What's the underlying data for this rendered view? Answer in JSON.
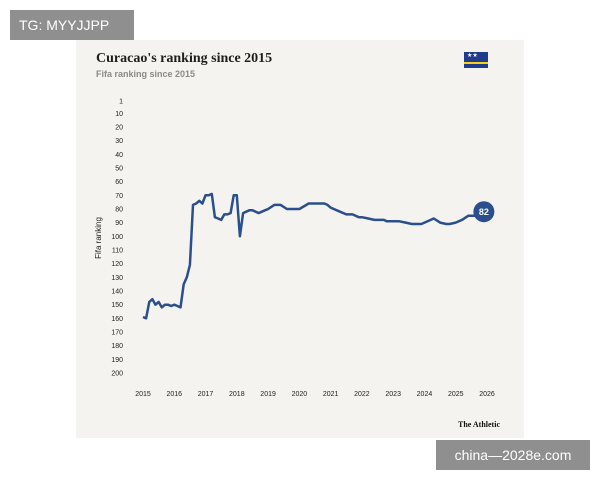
{
  "watermark_top": "TG: MYYJJPP",
  "watermark_bottom": "china—2028e.com",
  "source_label": "The Athletic",
  "flag_icon": "curacao-flag-icon",
  "colors": {
    "line": "#2a4f8c",
    "card_bg": "#f4f3ef",
    "flag_blue": "#1f3c8c",
    "flag_yellow": "#f7d116"
  },
  "chart_data": {
    "type": "line",
    "title": "Curacao's ranking since 2015",
    "subtitle": "Fifa ranking since 2015",
    "ylabel": "Fifa ranking",
    "xlabel": "",
    "y_inverted": true,
    "ylim": [
      1,
      200
    ],
    "xlim": [
      2015,
      2026
    ],
    "y_ticks": [
      "1",
      "10",
      "20",
      "30",
      "40",
      "50",
      "60",
      "70",
      "80",
      "90",
      "100",
      "110",
      "120",
      "130",
      "140",
      "150",
      "160",
      "170",
      "180",
      "190",
      "200"
    ],
    "x_ticks": [
      "2015",
      "2016",
      "2017",
      "2018",
      "2019",
      "2020",
      "2021",
      "2022",
      "2023",
      "2024",
      "2025",
      "2026"
    ],
    "grid": false,
    "end_label": "82",
    "series": [
      {
        "x": [
          2015.0,
          2015.1,
          2015.2,
          2015.3,
          2015.4,
          2015.5,
          2015.6,
          2015.7,
          2015.8,
          2015.9,
          2016.0,
          2016.1,
          2016.2,
          2016.3,
          2016.4,
          2016.5,
          2016.6,
          2016.7,
          2016.8,
          2016.9,
          2017.0,
          2017.1,
          2017.2,
          2017.3,
          2017.4,
          2017.5,
          2017.6,
          2017.7,
          2017.8,
          2017.9,
          2018.0,
          2018.1,
          2018.2,
          2018.3,
          2018.4,
          2018.5,
          2018.6,
          2018.7,
          2018.8,
          2018.9,
          2019.0,
          2019.2,
          2019.4,
          2019.6,
          2019.8,
          2019.9,
          2020.0,
          2020.3,
          2020.6,
          2020.8,
          2020.9,
          2021.0,
          2021.3,
          2021.5,
          2021.7,
          2021.9,
          2022.0,
          2022.2,
          2022.4,
          2022.5,
          2022.7,
          2022.8,
          2023.0,
          2023.2,
          2023.4,
          2023.6,
          2023.8,
          2023.9,
          2024.0,
          2024.2,
          2024.3,
          2024.5,
          2024.7,
          2024.8,
          2025.0,
          2025.2,
          2025.4,
          2025.6,
          2025.8,
          2025.9
        ],
        "y": [
          159,
          160,
          148,
          146,
          150,
          148,
          152,
          150,
          150,
          151,
          150,
          151,
          152,
          135,
          130,
          121,
          77,
          76,
          74,
          76,
          70,
          70,
          69,
          86,
          87,
          88,
          84,
          84,
          83,
          70,
          70,
          100,
          83,
          82,
          81,
          81,
          82,
          83,
          82,
          81,
          80,
          77,
          77,
          80,
          80,
          80,
          80,
          76,
          76,
          76,
          77,
          79,
          82,
          84,
          84,
          86,
          86,
          87,
          88,
          88,
          88,
          89,
          89,
          89,
          90,
          91,
          91,
          91,
          90,
          88,
          87,
          90,
          91,
          91,
          90,
          88,
          85,
          85,
          82,
          82
        ]
      }
    ]
  }
}
